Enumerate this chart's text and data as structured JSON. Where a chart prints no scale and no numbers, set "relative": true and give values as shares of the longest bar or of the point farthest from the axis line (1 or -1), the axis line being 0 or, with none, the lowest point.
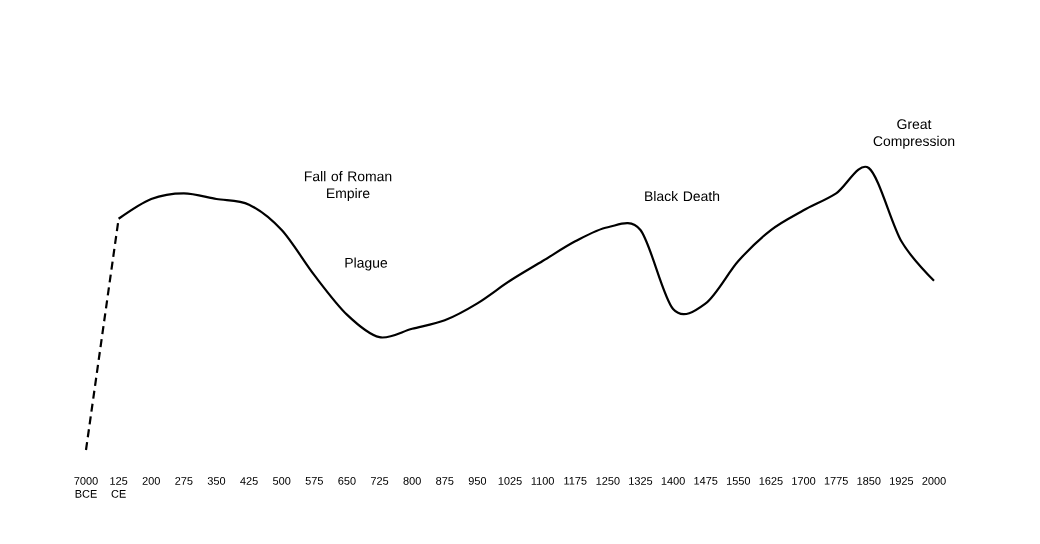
{
  "chart_data": {
    "type": "line",
    "relative": true,
    "categories": [
      "7000 BCE",
      "125 CE",
      "200",
      "275",
      "350",
      "425",
      "500",
      "575",
      "650",
      "725",
      "800",
      "875",
      "950",
      "1025",
      "1100",
      "1175",
      "1250",
      "1325",
      "1400",
      "1475",
      "1550",
      "1625",
      "1700",
      "1775",
      "1850",
      "1925",
      "2000"
    ],
    "series": [
      {
        "color": "#000000",
        "line_style": "dashed",
        "values": [
          0,
          0.82,
          null,
          null,
          null,
          null,
          null,
          null,
          null,
          null,
          null,
          null,
          null,
          null,
          null,
          null,
          null,
          null,
          null,
          null,
          null,
          null,
          null,
          null,
          null,
          null,
          null
        ]
      },
      {
        "color": "#000000",
        "line_style": "solid",
        "values": [
          null,
          0.82,
          0.89,
          0.91,
          0.89,
          0.87,
          0.78,
          0.62,
          0.48,
          0.4,
          0.43,
          0.46,
          0.52,
          0.6,
          0.67,
          0.74,
          0.79,
          0.78,
          0.5,
          0.52,
          0.67,
          0.78,
          0.85,
          0.91,
          1,
          0.74,
          0.6
        ]
      }
    ],
    "annotations": [
      "Fall of Roman Empire",
      "Plague",
      "Black Death",
      "Great Compression"
    ],
    "marker": "none",
    "grid": false
  }
}
